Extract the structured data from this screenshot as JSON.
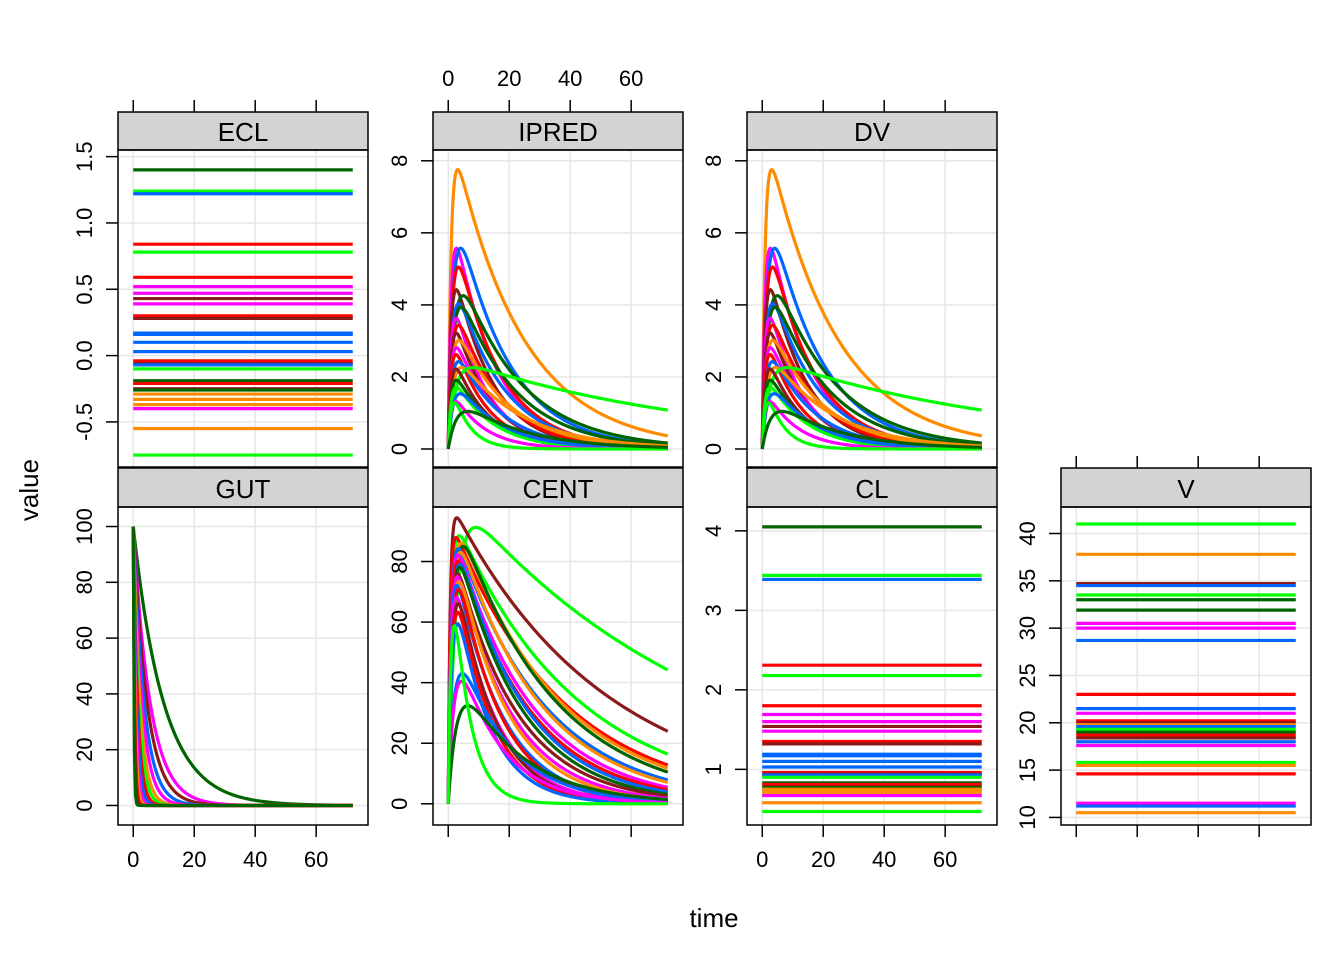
{
  "xlabel": "time",
  "ylabel": "value",
  "colors": [
    "#00FF00",
    "#FF8C00",
    "#0066FF",
    "#FF00FF",
    "#FF0000",
    "#8B1A1A",
    "#006400"
  ],
  "chart_data": {
    "type": "line",
    "layout": "lattice 4 columns x 2 rows, free y scales, shared x",
    "xlim": [
      -5,
      77
    ],
    "x_ticks": [
      0,
      20,
      40,
      60
    ],
    "grid": true,
    "panels": [
      {
        "name": "ECL",
        "ylim": [
          -0.84,
          1.55
        ],
        "y_ticks": [
          -0.5,
          0.0,
          0.5,
          1.0,
          1.5
        ],
        "y_tick_labels": [
          "-0.5",
          "0.0",
          "0.5",
          "1.0",
          "1.5"
        ],
        "kind": "const",
        "levels": [
          {
            "v": 1.4,
            "c": 6
          },
          {
            "v": 1.24,
            "c": 0
          },
          {
            "v": 1.22,
            "c": 2
          },
          {
            "v": 0.84,
            "c": 4
          },
          {
            "v": 0.78,
            "c": 0
          },
          {
            "v": 0.59,
            "c": 4
          },
          {
            "v": 0.52,
            "c": 3
          },
          {
            "v": 0.47,
            "c": 3
          },
          {
            "v": 0.43,
            "c": 5
          },
          {
            "v": 0.39,
            "c": 3
          },
          {
            "v": 0.3,
            "c": 4
          },
          {
            "v": 0.28,
            "c": 5
          },
          {
            "v": 0.17,
            "c": 2
          },
          {
            "v": 0.16,
            "c": 2
          },
          {
            "v": 0.1,
            "c": 2
          },
          {
            "v": 0.03,
            "c": 2
          },
          {
            "v": -0.04,
            "c": 4
          },
          {
            "v": -0.06,
            "c": 5
          },
          {
            "v": -0.07,
            "c": 2
          },
          {
            "v": -0.1,
            "c": 0
          },
          {
            "v": -0.19,
            "c": 6
          },
          {
            "v": -0.21,
            "c": 4
          },
          {
            "v": -0.25,
            "c": 5
          },
          {
            "v": -0.26,
            "c": 6
          },
          {
            "v": -0.29,
            "c": 1
          },
          {
            "v": -0.33,
            "c": 1
          },
          {
            "v": -0.37,
            "c": 1
          },
          {
            "v": -0.4,
            "c": 3
          },
          {
            "v": -0.55,
            "c": 1
          },
          {
            "v": -0.75,
            "c": 0
          }
        ]
      },
      {
        "name": "IPRED",
        "ylim": [
          -0.5,
          8.3
        ],
        "y_ticks": [
          0,
          2,
          4,
          6,
          8
        ],
        "y_tick_labels": [
          "0",
          "2",
          "4",
          "6",
          "8"
        ],
        "kind": "conc",
        "curves": [
          {
            "peak": 7.75,
            "tmax": 3,
            "ke": 0.045,
            "c": 1
          },
          {
            "peak": 5.55,
            "tmax": 3,
            "ke": 0.075,
            "c": 3
          },
          {
            "peak": 5.5,
            "tmax": 5,
            "ke": 0.06,
            "c": 2
          },
          {
            "peak": 5.0,
            "tmax": 4,
            "ke": 0.07,
            "c": 4
          },
          {
            "peak": 4.4,
            "tmax": 3,
            "ke": 0.08,
            "c": 5
          },
          {
            "peak": 4.2,
            "tmax": 6,
            "ke": 0.05,
            "c": 6
          },
          {
            "peak": 4.0,
            "tmax": 4,
            "ke": 0.065,
            "c": 2
          },
          {
            "peak": 3.9,
            "tmax": 5,
            "ke": 0.055,
            "c": 6
          },
          {
            "peak": 3.6,
            "tmax": 3,
            "ke": 0.09,
            "c": 3
          },
          {
            "peak": 3.4,
            "tmax": 4,
            "ke": 0.07,
            "c": 4
          },
          {
            "peak": 3.2,
            "tmax": 3,
            "ke": 0.085,
            "c": 5
          },
          {
            "peak": 3.0,
            "tmax": 4,
            "ke": 0.06,
            "c": 1
          },
          {
            "peak": 2.8,
            "tmax": 3,
            "ke": 0.075,
            "c": 3
          },
          {
            "peak": 2.6,
            "tmax": 3,
            "ke": 0.09,
            "c": 4
          },
          {
            "peak": 2.4,
            "tmax": 4,
            "ke": 0.07,
            "c": 2
          },
          {
            "peak": 2.25,
            "tmax": 5,
            "ke": 0.05,
            "c": 1
          },
          {
            "peak": 2.25,
            "tmax": 7,
            "ke": 0.012,
            "c": 0
          },
          {
            "peak": 2.2,
            "tmax": 3,
            "ke": 0.09,
            "c": 5
          },
          {
            "peak": 1.9,
            "tmax": 3,
            "ke": 0.08,
            "c": 6
          },
          {
            "peak": 1.7,
            "tmax": 3,
            "ke": 0.08,
            "c": 0
          },
          {
            "peak": 1.5,
            "tmax": 5,
            "ke": 0.07,
            "c": 2
          },
          {
            "peak": 1.3,
            "tmax": 3,
            "ke": 0.1,
            "c": 3
          },
          {
            "peak": 1.2,
            "tmax": 3,
            "ke": 0.18,
            "c": 0
          },
          {
            "peak": 1.0,
            "tmax": 9,
            "ke": 0.05,
            "c": 6
          }
        ]
      },
      {
        "name": "DV",
        "ylim": [
          -0.5,
          8.3
        ],
        "y_ticks": [
          0,
          2,
          4,
          6,
          8
        ],
        "y_tick_labels": [
          "0",
          "2",
          "4",
          "6",
          "8"
        ],
        "kind": "conc",
        "curves": [
          {
            "peak": 7.75,
            "tmax": 3,
            "ke": 0.045,
            "c": 1
          },
          {
            "peak": 5.55,
            "tmax": 3,
            "ke": 0.075,
            "c": 3
          },
          {
            "peak": 5.5,
            "tmax": 5,
            "ke": 0.06,
            "c": 2
          },
          {
            "peak": 5.0,
            "tmax": 4,
            "ke": 0.07,
            "c": 4
          },
          {
            "peak": 4.4,
            "tmax": 3,
            "ke": 0.08,
            "c": 5
          },
          {
            "peak": 4.2,
            "tmax": 6,
            "ke": 0.05,
            "c": 6
          },
          {
            "peak": 4.0,
            "tmax": 4,
            "ke": 0.065,
            "c": 2
          },
          {
            "peak": 3.9,
            "tmax": 5,
            "ke": 0.055,
            "c": 6
          },
          {
            "peak": 3.6,
            "tmax": 3,
            "ke": 0.09,
            "c": 3
          },
          {
            "peak": 3.4,
            "tmax": 4,
            "ke": 0.07,
            "c": 4
          },
          {
            "peak": 3.2,
            "tmax": 3,
            "ke": 0.085,
            "c": 5
          },
          {
            "peak": 3.0,
            "tmax": 4,
            "ke": 0.06,
            "c": 1
          },
          {
            "peak": 2.8,
            "tmax": 3,
            "ke": 0.075,
            "c": 3
          },
          {
            "peak": 2.6,
            "tmax": 3,
            "ke": 0.09,
            "c": 4
          },
          {
            "peak": 2.4,
            "tmax": 4,
            "ke": 0.07,
            "c": 2
          },
          {
            "peak": 2.25,
            "tmax": 5,
            "ke": 0.05,
            "c": 1
          },
          {
            "peak": 2.25,
            "tmax": 7,
            "ke": 0.012,
            "c": 0
          },
          {
            "peak": 2.2,
            "tmax": 3,
            "ke": 0.09,
            "c": 5
          },
          {
            "peak": 1.9,
            "tmax": 3,
            "ke": 0.08,
            "c": 6
          },
          {
            "peak": 1.7,
            "tmax": 3,
            "ke": 0.08,
            "c": 0
          },
          {
            "peak": 1.5,
            "tmax": 5,
            "ke": 0.07,
            "c": 2
          },
          {
            "peak": 1.3,
            "tmax": 3,
            "ke": 0.1,
            "c": 3
          },
          {
            "peak": 1.2,
            "tmax": 3,
            "ke": 0.18,
            "c": 0
          },
          {
            "peak": 1.0,
            "tmax": 9,
            "ke": 0.05,
            "c": 6
          }
        ]
      },
      {
        "name": "GUT",
        "ylim": [
          -7,
          107
        ],
        "y_ticks": [
          0,
          20,
          40,
          60,
          80,
          100
        ],
        "y_tick_labels": [
          "0",
          "20",
          "40",
          "60",
          "80",
          "100"
        ],
        "kind": "decay",
        "curves": [
          {
            "k": 0.1,
            "c": 6
          },
          {
            "k": 0.18,
            "c": 3
          },
          {
            "k": 0.22,
            "c": 5
          },
          {
            "k": 0.28,
            "c": 2
          },
          {
            "k": 0.35,
            "c": 3
          },
          {
            "k": 0.45,
            "c": 1
          },
          {
            "k": 0.55,
            "c": 0
          },
          {
            "k": 0.7,
            "c": 4
          },
          {
            "k": 0.9,
            "c": 2
          },
          {
            "k": 1.2,
            "c": 3
          },
          {
            "k": 1.6,
            "c": 1
          },
          {
            "k": 2.2,
            "c": 4
          },
          {
            "k": 3.0,
            "c": 5
          },
          {
            "k": 4.5,
            "c": 6
          }
        ]
      },
      {
        "name": "CENT",
        "ylim": [
          -7,
          98
        ],
        "y_ticks": [
          0,
          20,
          40,
          60,
          80
        ],
        "y_tick_labels": [
          "0",
          "20",
          "40",
          "60",
          "80"
        ],
        "kind": "conc",
        "curves": [
          {
            "peak": 91,
            "tmax": 8,
            "ke": 0.012,
            "c": 0
          },
          {
            "peak": 93,
            "tmax": 2,
            "ke": 0.02,
            "c": 5
          },
          {
            "peak": 88,
            "tmax": 3,
            "ke": 0.025,
            "c": 0
          },
          {
            "peak": 87,
            "tmax": 2,
            "ke": 0.028,
            "c": 4
          },
          {
            "peak": 86,
            "tmax": 4,
            "ke": 0.03,
            "c": 1
          },
          {
            "peak": 85,
            "tmax": 5,
            "ke": 0.032,
            "c": 6
          },
          {
            "peak": 84,
            "tmax": 3,
            "ke": 0.035,
            "c": 2
          },
          {
            "peak": 83,
            "tmax": 4,
            "ke": 0.037,
            "c": 1
          },
          {
            "peak": 82,
            "tmax": 3,
            "ke": 0.04,
            "c": 3
          },
          {
            "peak": 80,
            "tmax": 3,
            "ke": 0.042,
            "c": 4
          },
          {
            "peak": 79,
            "tmax": 4,
            "ke": 0.045,
            "c": 2
          },
          {
            "peak": 78,
            "tmax": 4,
            "ke": 0.048,
            "c": 6
          },
          {
            "peak": 76,
            "tmax": 3,
            "ke": 0.05,
            "c": 5
          },
          {
            "peak": 75,
            "tmax": 3,
            "ke": 0.055,
            "c": 3
          },
          {
            "peak": 73,
            "tmax": 4,
            "ke": 0.06,
            "c": 1
          },
          {
            "peak": 72,
            "tmax": 3,
            "ke": 0.065,
            "c": 2
          },
          {
            "peak": 70,
            "tmax": 4,
            "ke": 0.07,
            "c": 4
          },
          {
            "peak": 68,
            "tmax": 3,
            "ke": 0.075,
            "c": 3
          },
          {
            "peak": 65,
            "tmax": 4,
            "ke": 0.08,
            "c": 5
          },
          {
            "peak": 62,
            "tmax": 4,
            "ke": 0.085,
            "c": 4
          },
          {
            "peak": 58,
            "tmax": 4,
            "ke": 0.09,
            "c": 2
          },
          {
            "peak": 42,
            "tmax": 6,
            "ke": 0.06,
            "c": 2
          },
          {
            "peak": 39,
            "tmax": 6,
            "ke": 0.07,
            "c": 3
          },
          {
            "peak": 31,
            "tmax": 9,
            "ke": 0.05,
            "c": 6
          },
          {
            "peak": 55,
            "tmax": 3,
            "ke": 0.18,
            "c": 0
          }
        ]
      },
      {
        "name": "CL",
        "ylim": [
          0.3,
          4.3
        ],
        "y_ticks": [
          1,
          2,
          3,
          4
        ],
        "y_tick_labels": [
          "1",
          "2",
          "3",
          "4"
        ],
        "kind": "const",
        "levels": [
          {
            "v": 4.05,
            "c": 6
          },
          {
            "v": 3.44,
            "c": 0
          },
          {
            "v": 3.39,
            "c": 2
          },
          {
            "v": 2.31,
            "c": 4
          },
          {
            "v": 2.18,
            "c": 0
          },
          {
            "v": 1.8,
            "c": 4
          },
          {
            "v": 1.69,
            "c": 3
          },
          {
            "v": 1.6,
            "c": 3
          },
          {
            "v": 1.54,
            "c": 5
          },
          {
            "v": 1.48,
            "c": 3
          },
          {
            "v": 1.35,
            "c": 4
          },
          {
            "v": 1.32,
            "c": 5
          },
          {
            "v": 1.19,
            "c": 2
          },
          {
            "v": 1.17,
            "c": 2
          },
          {
            "v": 1.1,
            "c": 2
          },
          {
            "v": 1.03,
            "c": 2
          },
          {
            "v": 0.96,
            "c": 4
          },
          {
            "v": 0.94,
            "c": 5
          },
          {
            "v": 0.93,
            "c": 2
          },
          {
            "v": 0.9,
            "c": 0
          },
          {
            "v": 0.83,
            "c": 6
          },
          {
            "v": 0.81,
            "c": 4
          },
          {
            "v": 0.78,
            "c": 5
          },
          {
            "v": 0.77,
            "c": 6
          },
          {
            "v": 0.75,
            "c": 1
          },
          {
            "v": 0.72,
            "c": 1
          },
          {
            "v": 0.69,
            "c": 1
          },
          {
            "v": 0.67,
            "c": 3
          },
          {
            "v": 0.58,
            "c": 1
          },
          {
            "v": 0.47,
            "c": 0
          }
        ]
      },
      {
        "name": "V",
        "ylim": [
          9.2,
          42.8
        ],
        "y_ticks": [
          10,
          15,
          20,
          25,
          30,
          35,
          40
        ],
        "y_tick_labels": [
          "10",
          "15",
          "20",
          "25",
          "30",
          "35",
          "40"
        ],
        "kind": "const",
        "levels": [
          {
            "v": 41.0,
            "c": 0
          },
          {
            "v": 37.8,
            "c": 1
          },
          {
            "v": 34.7,
            "c": 5
          },
          {
            "v": 34.5,
            "c": 2
          },
          {
            "v": 33.5,
            "c": 0
          },
          {
            "v": 33.0,
            "c": 6
          },
          {
            "v": 31.9,
            "c": 6
          },
          {
            "v": 30.5,
            "c": 3
          },
          {
            "v": 30.0,
            "c": 3
          },
          {
            "v": 28.7,
            "c": 2
          },
          {
            "v": 23.0,
            "c": 4
          },
          {
            "v": 21.5,
            "c": 2
          },
          {
            "v": 21.0,
            "c": 3
          },
          {
            "v": 20.2,
            "c": 4
          },
          {
            "v": 20.0,
            "c": 5
          },
          {
            "v": 19.8,
            "c": 1
          },
          {
            "v": 19.6,
            "c": 2
          },
          {
            "v": 19.3,
            "c": 0
          },
          {
            "v": 19.0,
            "c": 6
          },
          {
            "v": 18.7,
            "c": 4
          },
          {
            "v": 18.4,
            "c": 5
          },
          {
            "v": 18.0,
            "c": 2
          },
          {
            "v": 17.6,
            "c": 3
          },
          {
            "v": 15.8,
            "c": 0
          },
          {
            "v": 15.5,
            "c": 1
          },
          {
            "v": 14.6,
            "c": 4
          },
          {
            "v": 11.5,
            "c": 3
          },
          {
            "v": 11.2,
            "c": 2
          },
          {
            "v": 10.5,
            "c": 1
          }
        ]
      }
    ]
  }
}
